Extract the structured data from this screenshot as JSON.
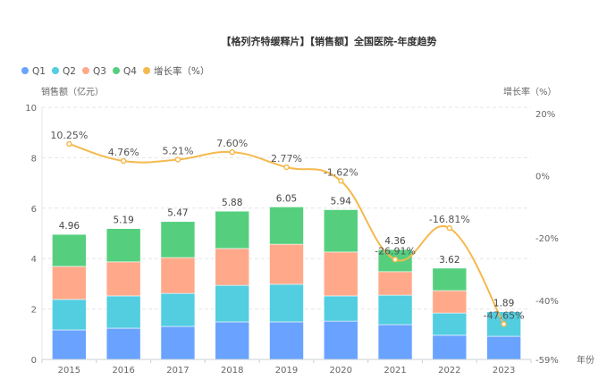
{
  "chart_data": {
    "type": "bar",
    "title": "【格列齐特缓释片】【销售额】全国医院-年度趋势",
    "xlabel": "年份",
    "ylabel": "销售额（亿元）",
    "y2label": "增长率（%）",
    "categories": [
      "2015",
      "2016",
      "2017",
      "2018",
      "2019",
      "2020",
      "2021",
      "2022",
      "2023"
    ],
    "stacked": true,
    "series": [
      {
        "name": "Q1",
        "color": "#6aa3ff",
        "values": [
          1.17,
          1.24,
          1.31,
          1.49,
          1.49,
          1.52,
          1.38,
          0.96,
          0.92
        ]
      },
      {
        "name": "Q2",
        "color": "#53cde0",
        "values": [
          1.21,
          1.28,
          1.31,
          1.45,
          1.49,
          1.0,
          1.17,
          0.88,
          0.97
        ]
      },
      {
        "name": "Q3",
        "color": "#ffa98a",
        "values": [
          1.31,
          1.35,
          1.42,
          1.46,
          1.59,
          1.74,
          0.93,
          0.89,
          0
        ]
      },
      {
        "name": "Q4",
        "color": "#55cf7e",
        "values": [
          1.27,
          1.32,
          1.43,
          1.48,
          1.48,
          1.68,
          0.88,
          0.89,
          0
        ]
      }
    ],
    "totals": [
      "4.96",
      "5.19",
      "5.47",
      "5.88",
      "6.05",
      "5.94",
      "4.36",
      "3.62",
      "1.89"
    ],
    "line_series": {
      "name": "增长率（%）",
      "color": "#f5b94e",
      "axis": "right",
      "values": [
        10.25,
        4.76,
        5.21,
        7.6,
        2.77,
        -1.62,
        -26.91,
        -16.81,
        -47.65
      ],
      "labels": [
        "10.25%",
        "4.76%",
        "5.21%",
        "7.60%",
        "2.77%",
        "-1.62%",
        "-26.91%",
        "-16.81%",
        "-47.65%"
      ]
    },
    "ylim": [
      0,
      10
    ],
    "yticks": [
      "0",
      "2",
      "4",
      "6",
      "8",
      "10"
    ],
    "y2lim": [
      -59,
      20
    ],
    "y2ticks": [
      "20%",
      "0%",
      "-20%",
      "-40%",
      "-59%"
    ],
    "y2tick_values": [
      20,
      0,
      -20,
      -40,
      -59
    ],
    "grid": true,
    "legend_position": "top-left",
    "legend": [
      "Q1",
      "Q2",
      "Q3",
      "Q4",
      "增长率（%）"
    ]
  }
}
